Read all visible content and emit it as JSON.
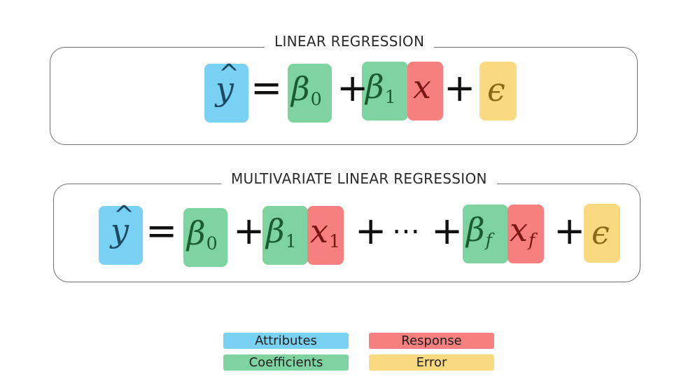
{
  "colors": {
    "attributes": "#79d1f3",
    "coefficients": "#7fd3a0",
    "response": "#f67f7f",
    "error": "#fbd981",
    "ink_blue": "#1b4a66",
    "ink_green": "#1a5c32",
    "ink_red": "#7a1515",
    "ink_gold": "#8a6a16"
  },
  "panels": {
    "linear": {
      "title": "LINEAR REGRESSION"
    },
    "multivariate": {
      "title": "MULTIVARIATE LINEAR REGRESSION"
    }
  },
  "equation_linear": {
    "y": "y",
    "hat": "^",
    "equals": "=",
    "beta": "β",
    "sub0": "0",
    "sub1": "1",
    "plus": "+",
    "x": "x",
    "epsilon": "ϵ"
  },
  "equation_multi": {
    "y": "y",
    "hat": "^",
    "equals": "=",
    "beta": "β",
    "sub0": "0",
    "sub1": "1",
    "subf": "f",
    "plus": "+",
    "x": "x",
    "dots": "⋯",
    "epsilon": "ϵ"
  },
  "legend": {
    "attributes": "Attributes",
    "coefficients": "Coefficients",
    "response": "Response",
    "error": "Error"
  }
}
